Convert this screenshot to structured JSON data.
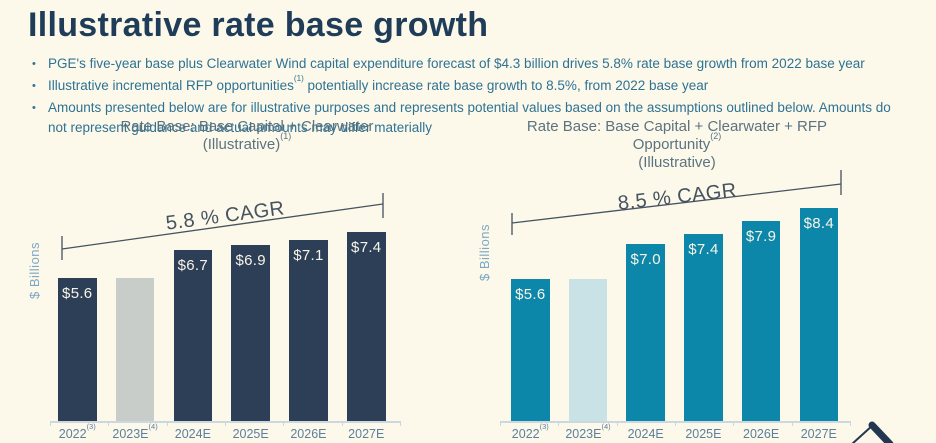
{
  "slide": {
    "title": "Illustrative rate base growth",
    "bullets": [
      {
        "parts": [
          {
            "t": "PGE's five-year base plus Clearwater Wind capital expenditure forecast of $4.3 billion drives 5.8% rate base growth from 2022 base year"
          }
        ]
      },
      {
        "parts": [
          {
            "t": "Illustrative incremental RFP opportunities"
          },
          {
            "sup": "(1)"
          },
          {
            "t": " potentially increase rate base growth to 8.5%, from 2022 base year"
          }
        ]
      },
      {
        "parts": [
          {
            "t": "Amounts presented below are for illustrative purposes and represents potential values based on the assumptions outlined below. Amounts do not represent guidance and actual amounts may differ materially"
          }
        ]
      }
    ]
  },
  "theme": {
    "background": "#fcf9ea",
    "title_color": "#1f3c58",
    "bullet_color": "#2e7294",
    "chart_title_color": "#5b7381",
    "axis_label_color": "#7da7c4",
    "tick_label_color": "#5d7e9e",
    "annotation_color": "#45525f",
    "baseline_color": "#ccd8e0",
    "logo_color": "#243750"
  },
  "chart_data": [
    {
      "type": "bar",
      "title_lines": [
        [
          {
            "t": "Rate Base: Base Capital + Clearwater"
          }
        ],
        [
          {
            "t": "(Illustrative)"
          },
          {
            "sup": "(1)"
          }
        ]
      ],
      "ylabel": "$ Billions",
      "xlabel": "",
      "categories": [
        "2022",
        "2023E",
        "2024E",
        "2025E",
        "2026E",
        "2027E"
      ],
      "category_sups": [
        "(3)",
        "(4)",
        "",
        "",
        "",
        ""
      ],
      "values": [
        5.6,
        5.6,
        6.7,
        6.9,
        7.1,
        7.4
      ],
      "bar_labels": [
        "$5.6",
        null,
        "$6.7",
        "$6.9",
        "$7.1",
        "$7.4"
      ],
      "bar_colors": [
        "#2d3f57",
        "#c9cdc9",
        "#2d3f57",
        "#2d3f57",
        "#2d3f57",
        "#2d3f57"
      ],
      "bar_label_color": "#f7f4e8",
      "annotation": "5.8 % CAGR",
      "ylim": [
        0,
        9.5
      ],
      "grid": false,
      "legend": null
    },
    {
      "type": "bar",
      "title_lines": [
        [
          {
            "t": "Rate Base: Base Capital + Clearwater + RFP"
          }
        ],
        [
          {
            "t": "Opportunity"
          },
          {
            "sup": "(2)"
          }
        ],
        [
          {
            "t": "(Illustrative)"
          }
        ]
      ],
      "ylabel": "$ Billions",
      "xlabel": "",
      "categories": [
        "2022",
        "2023E",
        "2024E",
        "2025E",
        "2026E",
        "2027E"
      ],
      "category_sups": [
        "(3)",
        "(4)",
        "",
        "",
        "",
        ""
      ],
      "values": [
        5.6,
        5.6,
        7.0,
        7.4,
        7.9,
        8.4
      ],
      "bar_labels": [
        "$5.6",
        null,
        "$7.0",
        "$7.4",
        "$7.9",
        "$8.4"
      ],
      "bar_colors": [
        "#0d87a9",
        "#c9e2e6",
        "#0d87a9",
        "#0d87a9",
        "#0d87a9",
        "#0d87a9"
      ],
      "bar_label_color": "#f7f4e8",
      "annotation": "8.5 % CAGR",
      "ylim": [
        0,
        9.5
      ],
      "grid": false,
      "legend": null
    }
  ]
}
